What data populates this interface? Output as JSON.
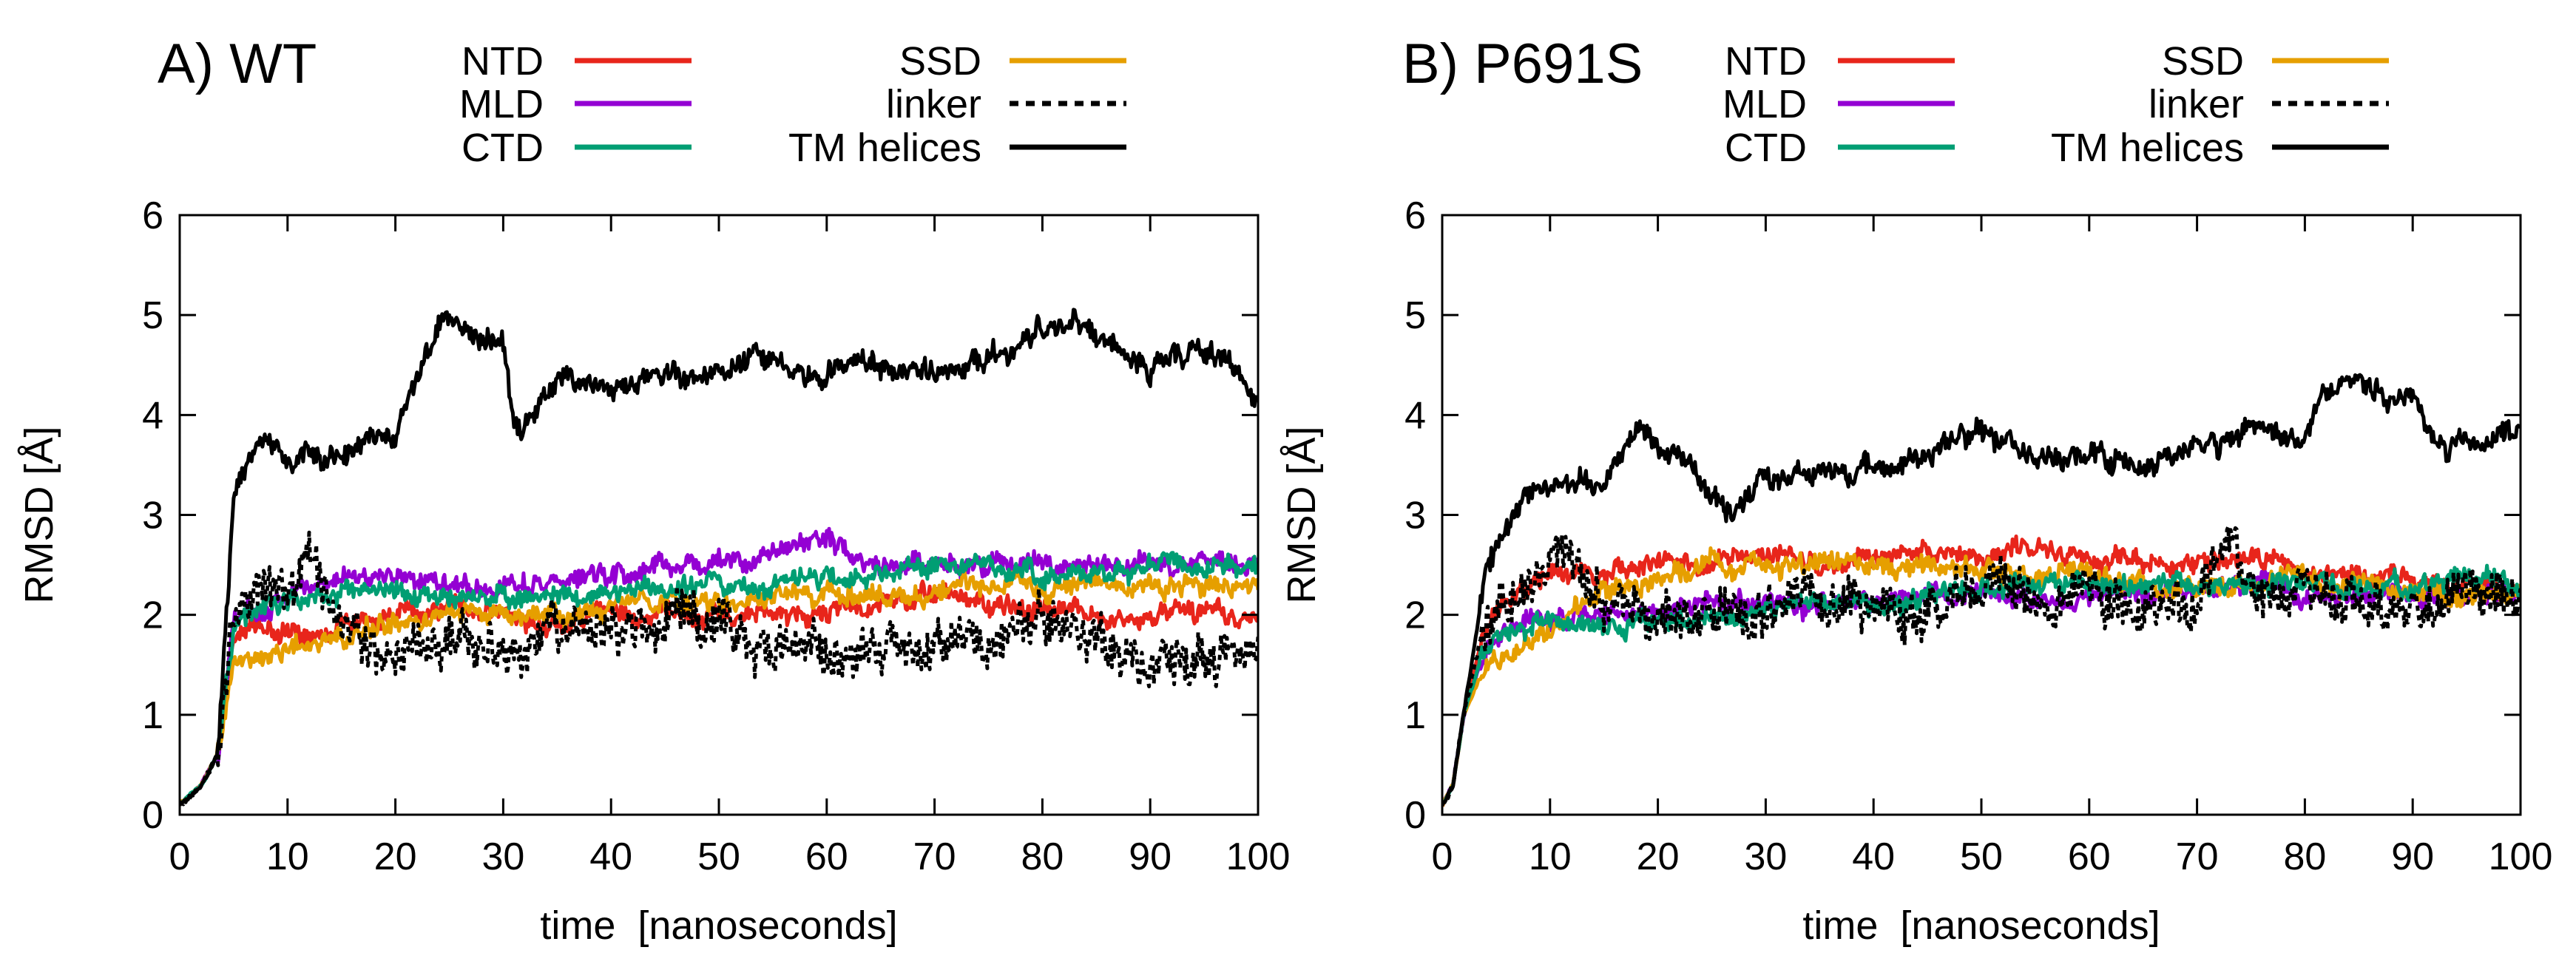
{
  "chart_data": [
    {
      "type": "line",
      "panel_label": "A) WT",
      "xlabel": "time  [nanoseconds]",
      "ylabel": "RMSD [Å]",
      "xlim": [
        0,
        100
      ],
      "ylim": [
        0,
        6
      ],
      "xticks": [
        0,
        10,
        20,
        30,
        40,
        50,
        60,
        70,
        80,
        90,
        100
      ],
      "yticks": [
        0,
        1,
        2,
        3,
        4,
        5,
        6
      ],
      "grid": false,
      "legend_position": "top",
      "series": [
        {
          "name": "NTD",
          "color": "#e8251b",
          "dash": "solid",
          "x": [
            0,
            2,
            3.5,
            5,
            8,
            10,
            15,
            20,
            25,
            30,
            35,
            40,
            45,
            50,
            55,
            60,
            65,
            70,
            75,
            80,
            85,
            90,
            95,
            100
          ],
          "y": [
            0.1,
            0.3,
            0.6,
            1.8,
            1.9,
            1.8,
            1.9,
            2.0,
            2.1,
            2.0,
            1.9,
            2.0,
            2.0,
            2.0,
            2.0,
            2.0,
            2.1,
            2.2,
            2.1,
            2.1,
            2.0,
            2.0,
            2.0,
            2.0
          ]
        },
        {
          "name": "MLD",
          "color": "#9400d3",
          "dash": "solid",
          "x": [
            0,
            2,
            3.5,
            5,
            8,
            10,
            15,
            20,
            25,
            30,
            35,
            40,
            45,
            50,
            55,
            60,
            62,
            65,
            70,
            75,
            80,
            85,
            90,
            95,
            100
          ],
          "y": [
            0.1,
            0.3,
            0.6,
            1.9,
            2.1,
            2.2,
            2.4,
            2.4,
            2.3,
            2.3,
            2.3,
            2.4,
            2.5,
            2.5,
            2.6,
            2.8,
            2.6,
            2.5,
            2.5,
            2.5,
            2.5,
            2.5,
            2.5,
            2.5,
            2.5
          ]
        },
        {
          "name": "CTD",
          "color": "#009e73",
          "dash": "solid",
          "x": [
            0,
            2,
            3.5,
            5,
            8,
            10,
            15,
            20,
            25,
            30,
            35,
            40,
            45,
            50,
            55,
            60,
            65,
            70,
            75,
            80,
            85,
            90,
            95,
            100
          ],
          "y": [
            0.1,
            0.3,
            0.6,
            1.9,
            2.1,
            2.1,
            2.2,
            2.2,
            2.2,
            2.2,
            2.2,
            2.2,
            2.3,
            2.3,
            2.3,
            2.4,
            2.4,
            2.5,
            2.5,
            2.4,
            2.4,
            2.5,
            2.5,
            2.5
          ]
        },
        {
          "name": "SSD",
          "color": "#e69f00",
          "dash": "solid",
          "x": [
            0,
            2,
            3.5,
            5,
            8,
            10,
            15,
            20,
            25,
            30,
            35,
            40,
            45,
            50,
            55,
            60,
            65,
            70,
            75,
            80,
            85,
            90,
            95,
            100
          ],
          "y": [
            0.1,
            0.3,
            0.6,
            1.5,
            1.6,
            1.7,
            1.8,
            1.9,
            2.0,
            2.0,
            2.0,
            2.1,
            2.1,
            2.1,
            2.2,
            2.2,
            2.2,
            2.2,
            2.3,
            2.3,
            2.3,
            2.3,
            2.3,
            2.3
          ]
        },
        {
          "name": "linker",
          "color": "#000000",
          "dash": "dotted",
          "x": [
            0,
            2,
            3.5,
            5,
            8,
            10,
            12,
            15,
            20,
            25,
            30,
            35,
            40,
            45,
            50,
            55,
            60,
            65,
            70,
            75,
            80,
            85,
            90,
            95,
            100
          ],
          "y": [
            0.1,
            0.3,
            0.6,
            2.0,
            2.3,
            2.2,
            2.6,
            1.8,
            1.6,
            1.7,
            1.6,
            1.9,
            1.8,
            2.0,
            1.9,
            1.7,
            1.7,
            1.6,
            1.6,
            1.7,
            2.0,
            1.7,
            1.6,
            1.6,
            1.6
          ]
        },
        {
          "name": "TM helices",
          "color": "#000000",
          "dash": "solid",
          "x": [
            0,
            2,
            3.5,
            5,
            7,
            8,
            10,
            12,
            15,
            18,
            20,
            22,
            24,
            25,
            27,
            30,
            31,
            35,
            40,
            45,
            50,
            55,
            60,
            65,
            70,
            75,
            80,
            83,
            85,
            88,
            90,
            95,
            98,
            100
          ],
          "y": [
            0.1,
            0.3,
            0.6,
            3.2,
            3.7,
            3.8,
            3.5,
            3.6,
            3.6,
            3.7,
            3.8,
            4.3,
            4.9,
            5.0,
            4.8,
            4.7,
            3.9,
            4.3,
            4.3,
            4.4,
            4.4,
            4.6,
            4.4,
            4.5,
            4.4,
            4.6,
            4.8,
            5.0,
            4.8,
            4.6,
            4.5,
            4.6,
            4.5,
            4.0
          ]
        }
      ]
    },
    {
      "type": "line",
      "panel_label": "B) P691S",
      "xlabel": "time  [nanoseconds]",
      "ylabel": "RMSD [Å]",
      "xlim": [
        0,
        100
      ],
      "ylim": [
        0,
        6
      ],
      "xticks": [
        0,
        10,
        20,
        30,
        40,
        50,
        60,
        70,
        80,
        90,
        100
      ],
      "yticks": [
        0,
        1,
        2,
        3,
        4,
        5,
        6
      ],
      "grid": false,
      "legend_position": "top",
      "series": [
        {
          "name": "NTD",
          "color": "#e8251b",
          "dash": "solid",
          "x": [
            0,
            1,
            2,
            4,
            6,
            10,
            15,
            20,
            25,
            30,
            35,
            40,
            45,
            50,
            55,
            60,
            65,
            70,
            75,
            80,
            85,
            90,
            95,
            100
          ],
          "y": [
            0.1,
            0.3,
            1.0,
            1.9,
            2.2,
            2.4,
            2.4,
            2.5,
            2.5,
            2.6,
            2.5,
            2.6,
            2.6,
            2.6,
            2.6,
            2.6,
            2.5,
            2.5,
            2.6,
            2.4,
            2.4,
            2.3,
            2.3,
            2.3
          ]
        },
        {
          "name": "MLD",
          "color": "#9400d3",
          "dash": "solid",
          "x": [
            0,
            1,
            2,
            4,
            6,
            10,
            15,
            20,
            25,
            30,
            35,
            40,
            45,
            50,
            55,
            60,
            65,
            70,
            75,
            80,
            85,
            90,
            95,
            100
          ],
          "y": [
            0.1,
            0.3,
            1.0,
            1.7,
            1.9,
            2.0,
            2.0,
            2.0,
            2.1,
            2.1,
            2.1,
            2.1,
            2.2,
            2.2,
            2.2,
            2.2,
            2.2,
            2.2,
            2.3,
            2.2,
            2.2,
            2.2,
            2.2,
            2.2
          ]
        },
        {
          "name": "CTD",
          "color": "#009e73",
          "dash": "solid",
          "x": [
            0,
            1,
            2,
            4,
            6,
            10,
            15,
            20,
            25,
            30,
            35,
            40,
            45,
            50,
            55,
            60,
            65,
            70,
            75,
            80,
            85,
            90,
            95,
            100
          ],
          "y": [
            0.1,
            0.3,
            1.0,
            1.7,
            1.8,
            1.9,
            1.9,
            1.9,
            2.0,
            2.0,
            2.1,
            2.1,
            2.2,
            2.3,
            2.3,
            2.3,
            2.3,
            2.3,
            2.3,
            2.3,
            2.3,
            2.3,
            2.4,
            2.3
          ]
        },
        {
          "name": "SSD",
          "color": "#e69f00",
          "dash": "solid",
          "x": [
            0,
            1,
            2,
            4,
            6,
            10,
            15,
            20,
            25,
            30,
            35,
            40,
            45,
            50,
            55,
            60,
            65,
            70,
            75,
            80,
            85,
            90,
            95,
            100
          ],
          "y": [
            0.1,
            0.3,
            1.0,
            1.5,
            1.6,
            1.8,
            2.2,
            2.4,
            2.5,
            2.5,
            2.5,
            2.5,
            2.5,
            2.4,
            2.4,
            2.4,
            2.3,
            2.3,
            2.3,
            2.3,
            2.3,
            2.2,
            2.2,
            2.2
          ]
        },
        {
          "name": "linker",
          "color": "#000000",
          "dash": "dotted",
          "x": [
            0,
            1,
            2,
            4,
            6,
            8,
            10,
            12,
            15,
            20,
            25,
            30,
            35,
            40,
            45,
            50,
            55,
            60,
            65,
            70,
            73,
            75,
            80,
            85,
            90,
            95,
            100
          ],
          "y": [
            0.1,
            0.3,
            1.0,
            2.0,
            2.2,
            2.3,
            2.5,
            2.6,
            2.1,
            2.0,
            2.0,
            2.0,
            2.1,
            2.0,
            2.1,
            2.3,
            2.2,
            2.2,
            2.1,
            2.2,
            2.8,
            2.3,
            2.3,
            2.1,
            2.0,
            2.2,
            2.3
          ]
        },
        {
          "name": "TM helices",
          "color": "#000000",
          "dash": "solid",
          "x": [
            0,
            1,
            2,
            4,
            6,
            8,
            10,
            12,
            15,
            18,
            20,
            22,
            25,
            27,
            30,
            35,
            40,
            45,
            50,
            55,
            60,
            65,
            70,
            75,
            80,
            82,
            85,
            88,
            90,
            92,
            95,
            100
          ],
          "y": [
            0.1,
            0.3,
            1.0,
            2.4,
            2.9,
            3.2,
            3.3,
            3.4,
            3.3,
            3.9,
            3.7,
            3.6,
            3.2,
            3.0,
            3.4,
            3.4,
            3.5,
            3.6,
            3.9,
            3.6,
            3.6,
            3.5,
            3.7,
            3.8,
            3.8,
            4.3,
            4.4,
            4.1,
            4.2,
            3.7,
            3.7,
            3.8
          ]
        }
      ]
    }
  ]
}
